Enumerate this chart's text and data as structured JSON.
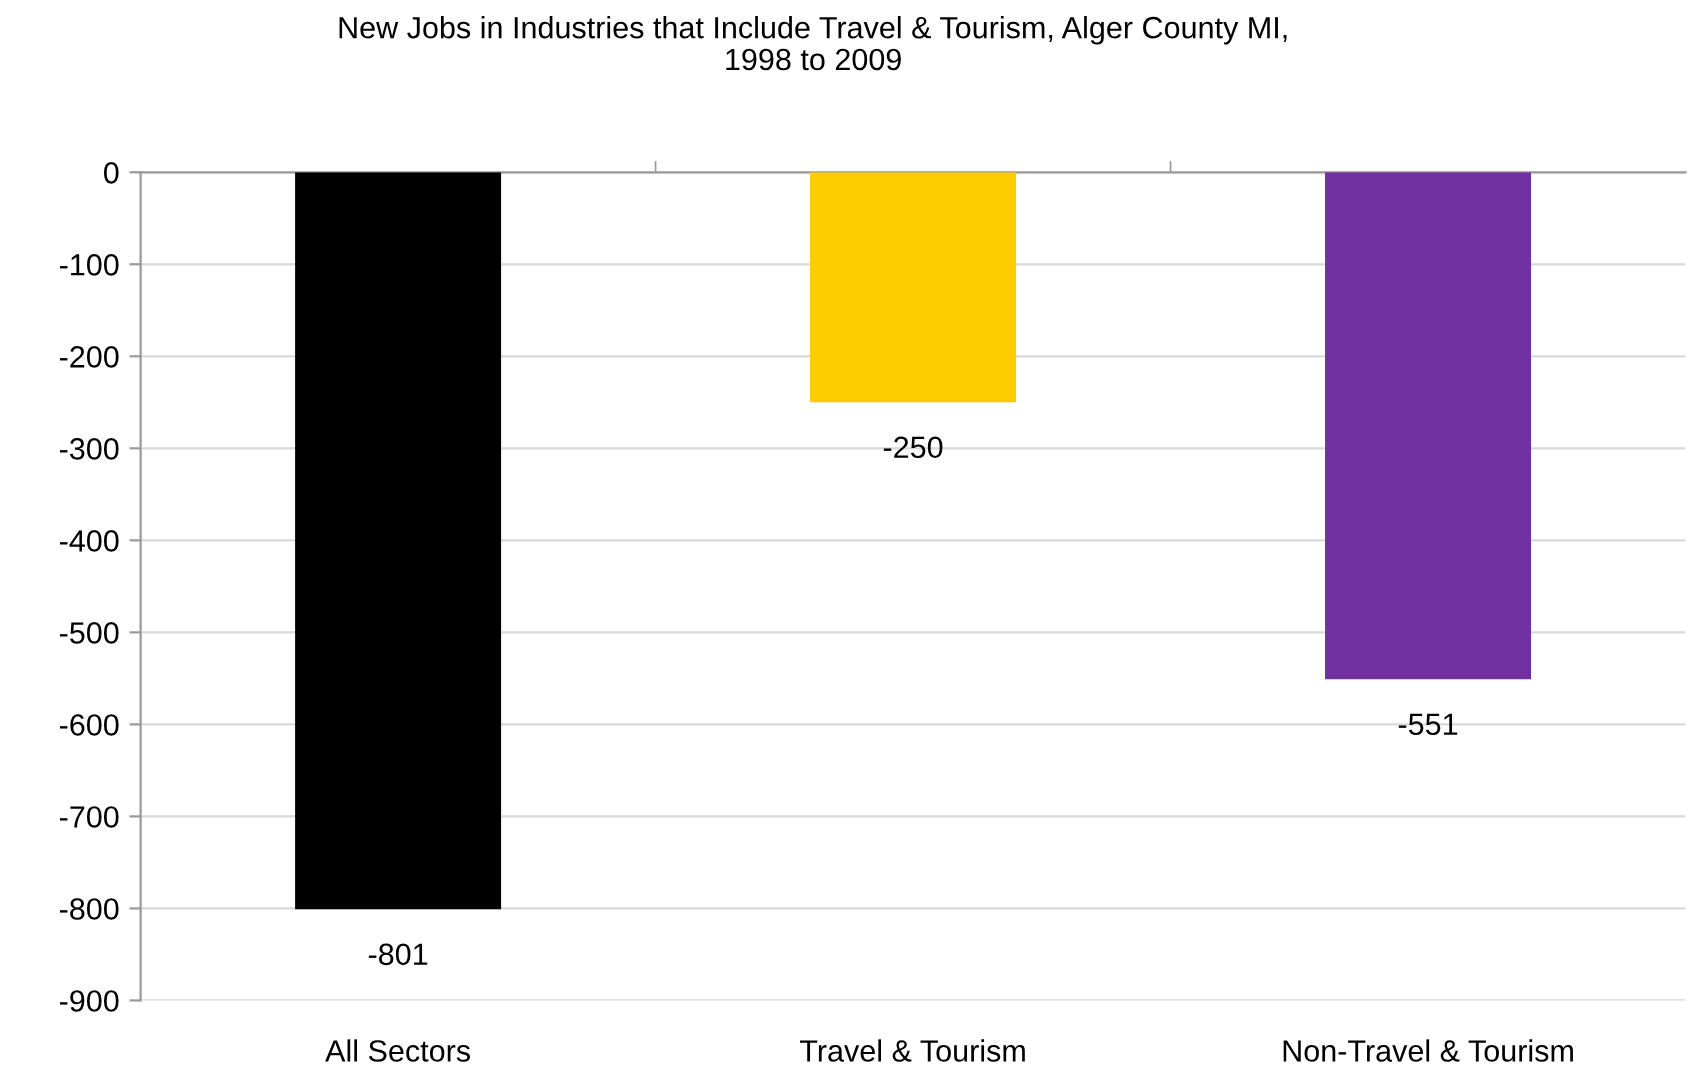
{
  "chart_data": {
    "type": "bar",
    "title": "New Jobs in Industries that Include Travel & Tourism, Alger County MI,\n1998 to 2009",
    "categories": [
      "All Sectors",
      "Travel & Tourism",
      "Non-Travel & Tourism"
    ],
    "values": [
      -801,
      -250,
      -551
    ],
    "colors": [
      "#000000",
      "#ffcc00",
      "#7030a0"
    ],
    "ylim": [
      -900,
      0
    ],
    "yticks": [
      0,
      -100,
      -200,
      -300,
      -400,
      -500,
      -600,
      -700,
      -800,
      -900
    ],
    "grid": "y",
    "data_labels": true
  }
}
